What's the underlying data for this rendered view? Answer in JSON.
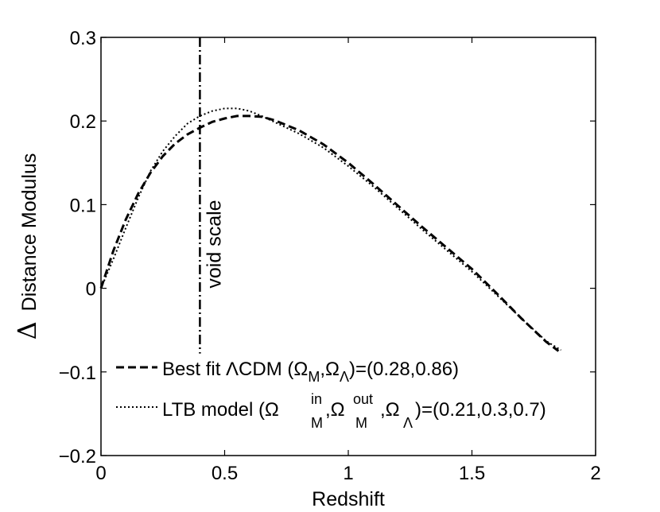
{
  "chart_data": {
    "type": "line",
    "title": "",
    "xlabel": "Redshift",
    "ylabel": "Distance Modulus",
    "ylabel_prefix": "Δ",
    "xlim": [
      0,
      2
    ],
    "ylim": [
      -0.2,
      0.3
    ],
    "x_ticks": [
      0,
      0.5,
      1,
      1.5,
      2
    ],
    "y_ticks": [
      -0.2,
      -0.1,
      0,
      0.1,
      0.2,
      0.3
    ],
    "x_tick_labels": [
      "0",
      "0.5",
      "1",
      "1.5",
      "2"
    ],
    "y_tick_labels": [
      "−0.2",
      "−0.1",
      "0",
      "0.1",
      "0.2",
      "0.3"
    ],
    "grid": false,
    "legend_position": "lower-left",
    "void_scale": {
      "x": 0.4,
      "label": "void scale"
    },
    "series": [
      {
        "name": "Best fit ΛCDM (Ω_M,Ω_Λ)=(0.28,0.86)",
        "style": "dashed",
        "x": [
          0,
          0.05,
          0.1,
          0.15,
          0.2,
          0.25,
          0.3,
          0.35,
          0.4,
          0.45,
          0.5,
          0.55,
          0.6,
          0.65,
          0.7,
          0.8,
          0.9,
          1.0,
          1.1,
          1.2,
          1.3,
          1.4,
          1.5,
          1.6,
          1.7,
          1.8,
          1.85
        ],
        "values": [
          0.0,
          0.045,
          0.082,
          0.113,
          0.138,
          0.158,
          0.173,
          0.184,
          0.192,
          0.199,
          0.203,
          0.206,
          0.206,
          0.205,
          0.201,
          0.189,
          0.172,
          0.15,
          0.125,
          0.099,
          0.073,
          0.048,
          0.023,
          -0.006,
          -0.036,
          -0.064,
          -0.075
        ]
      },
      {
        "name": "LTB model (Ω_M^in,Ω_M^out,Ω_Λ)=(0.21,0.3,0.7)",
        "style": "dotted",
        "x": [
          0,
          0.05,
          0.1,
          0.15,
          0.2,
          0.25,
          0.3,
          0.35,
          0.4,
          0.45,
          0.5,
          0.55,
          0.6,
          0.65,
          0.7,
          0.8,
          0.9,
          1.0,
          1.1,
          1.2,
          1.3,
          1.4,
          1.5,
          1.6,
          1.7,
          1.8,
          1.86
        ],
        "values": [
          0.0,
          0.035,
          0.072,
          0.108,
          0.14,
          0.164,
          0.182,
          0.197,
          0.206,
          0.212,
          0.215,
          0.215,
          0.212,
          0.206,
          0.199,
          0.185,
          0.168,
          0.146,
          0.122,
          0.096,
          0.07,
          0.045,
          0.02,
          -0.008,
          -0.036,
          -0.063,
          -0.074
        ]
      }
    ],
    "legend": {
      "entry1": {
        "prefix": "Best fit ΛCDM (Ω",
        "sub1": "M",
        "mid1": ",Ω",
        "sub2": "Λ",
        "suffix": ")=(0.28,0.86)"
      },
      "entry2": {
        "prefix": "LTB model (Ω",
        "sup1": "in",
        "sub1": "M",
        "mid1": ",Ω",
        "sup2": "out",
        "sub2": "M",
        "mid2": ",Ω",
        "sub3": "Λ",
        "suffix": ")=(0.21,0.3,0.7)"
      }
    }
  }
}
